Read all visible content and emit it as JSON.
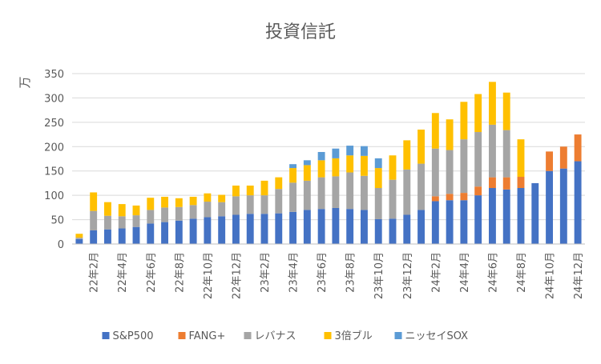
{
  "chart_data": {
    "type": "bar",
    "stacked": true,
    "title": "投資信託",
    "ylabel": "万",
    "ylim": [
      0,
      350
    ],
    "yticks": [
      0,
      50,
      100,
      150,
      200,
      250,
      300,
      350
    ],
    "grid": true,
    "legend_position": "bottom",
    "categories": [
      "22年1月",
      "22年2月",
      "22年3月",
      "22年4月",
      "22年5月",
      "22年6月",
      "22年7月",
      "22年8月",
      "22年9月",
      "22年10月",
      "22年11月",
      "22年12月",
      "23年1月",
      "23年2月",
      "23年3月",
      "23年4月",
      "23年5月",
      "23年6月",
      "23年7月",
      "23年8月",
      "23年9月",
      "23年10月",
      "23年11月",
      "23年12月",
      "24年1月",
      "24年2月",
      "24年3月",
      "24年4月",
      "24年5月",
      "24年6月",
      "24年7月",
      "24年8月",
      "24年9月",
      "24年10月",
      "24年11月",
      "24年12月"
    ],
    "shown_tick_labels": [
      "22年2月",
      "22年4月",
      "22年6月",
      "22年8月",
      "22年10月",
      "22年12月",
      "23年2月",
      "23年4月",
      "23年6月",
      "23年8月",
      "23年10月",
      "23年12月",
      "24年2月",
      "24年4月",
      "24年6月",
      "24年8月",
      "24年10月",
      "24年12月"
    ],
    "series": [
      {
        "name": "S&P500",
        "color": "#4472C4",
        "values": [
          10,
          28,
          30,
          32,
          35,
          42,
          45,
          48,
          52,
          55,
          57,
          60,
          62,
          62,
          63,
          66,
          70,
          72,
          74,
          72,
          70,
          51,
          52,
          60,
          70,
          88,
          90,
          90,
          100,
          115,
          112,
          115,
          125,
          150,
          155,
          170
        ]
      },
      {
        "name": "FANG+",
        "color": "#ED7D31",
        "values": [
          0,
          0,
          0,
          0,
          0,
          0,
          0,
          0,
          0,
          0,
          0,
          0,
          0,
          0,
          0,
          0,
          0,
          0,
          0,
          0,
          0,
          0,
          0,
          0,
          0,
          10,
          13,
          15,
          18,
          22,
          25,
          23,
          0,
          40,
          45,
          55
        ]
      },
      {
        "name": "レバナス",
        "color": "#A5A5A5",
        "values": [
          3,
          40,
          28,
          25,
          24,
          28,
          30,
          28,
          28,
          32,
          29,
          38,
          38,
          38,
          50,
          60,
          60,
          65,
          65,
          75,
          70,
          64,
          80,
          93,
          95,
          98,
          90,
          110,
          112,
          108,
          97,
          0,
          0,
          0,
          0,
          0
        ]
      },
      {
        "name": "3倍ブル",
        "color": "#FFC000",
        "values": [
          8,
          38,
          28,
          25,
          20,
          25,
          22,
          18,
          17,
          17,
          15,
          22,
          20,
          30,
          24,
          30,
          32,
          35,
          37,
          35,
          41,
          41,
          50,
          60,
          70,
          73,
          63,
          77,
          78,
          88,
          77,
          77,
          0,
          0,
          0,
          0
        ]
      },
      {
        "name": "ニッセイSOX",
        "color": "#5B9BD5",
        "values": [
          0,
          0,
          0,
          0,
          0,
          0,
          0,
          0,
          0,
          0,
          0,
          0,
          0,
          0,
          0,
          8,
          10,
          17,
          20,
          20,
          20,
          20,
          0,
          0,
          0,
          0,
          0,
          0,
          0,
          0,
          0,
          0,
          0,
          0,
          0,
          0
        ]
      }
    ]
  }
}
